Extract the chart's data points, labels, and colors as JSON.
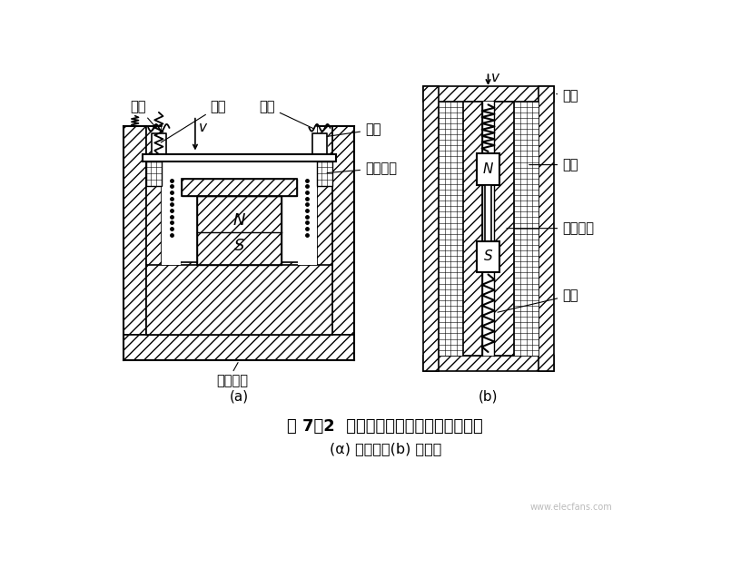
{
  "title_line1": "图 7－2  恒磁通式磁电传感器结构原理图",
  "title_line2": "(α) 动圈式；(b) 动铁式",
  "label_a_spring": "弹簧",
  "label_a_v": "v",
  "label_a_pole": "极掌",
  "label_a_coil": "线圈",
  "label_a_yoke": "磁轭",
  "label_a_comp": "补偿线圈",
  "label_a_magnet": "永久磁铁",
  "label_a_N": "N",
  "label_a_S": "S",
  "label_b_shell": "壳体",
  "label_b_coil": "线圈",
  "label_b_magnet": "永久磁铁",
  "label_b_spring": "弹簧",
  "label_b_v": "v",
  "label_b_N": "N",
  "label_b_S": "S",
  "label_a": "(a)",
  "label_b": "(b)"
}
